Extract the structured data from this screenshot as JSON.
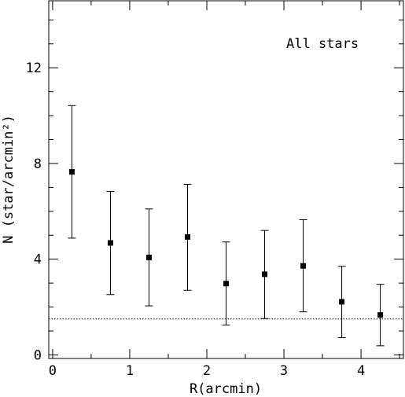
{
  "chart_data": {
    "type": "scatter",
    "title": "",
    "annotation": "All stars",
    "xlabel": "R(arcmin)",
    "ylabel": "N (star/arcmin²)",
    "xlim": [
      -0.05,
      4.55
    ],
    "ylim": [
      -0.15,
      14.8
    ],
    "x_ticks_major": [
      0,
      1,
      2,
      3,
      4
    ],
    "x_tick_labels": [
      "0",
      "1",
      "2",
      "3",
      "4"
    ],
    "x_ticks_minor": [
      0.5,
      1.5,
      2.5,
      3.5,
      4.5
    ],
    "y_ticks_major": [
      0,
      4,
      8,
      12
    ],
    "y_tick_labels": [
      "0",
      "4",
      "8",
      "12"
    ],
    "y_ticks_minor": [
      1,
      2,
      3,
      5,
      6,
      7,
      9,
      10,
      11,
      13,
      14
    ],
    "grid": false,
    "legend": "none",
    "reference_line": {
      "y": 1.5,
      "style": "dotted"
    },
    "series": [
      {
        "x": [
          0.25,
          0.75,
          1.25,
          1.75,
          2.25,
          2.75,
          3.25,
          3.75,
          4.25
        ],
        "y": [
          7.65,
          4.68,
          4.07,
          4.93,
          2.98,
          3.37,
          3.72,
          2.22,
          1.67
        ],
        "err_low": [
          4.88,
          2.52,
          2.05,
          2.7,
          1.25,
          1.52,
          1.8,
          0.72,
          0.38
        ],
        "err_high": [
          10.42,
          6.83,
          6.1,
          7.13,
          4.72,
          5.2,
          5.65,
          3.7,
          2.95
        ]
      }
    ]
  }
}
